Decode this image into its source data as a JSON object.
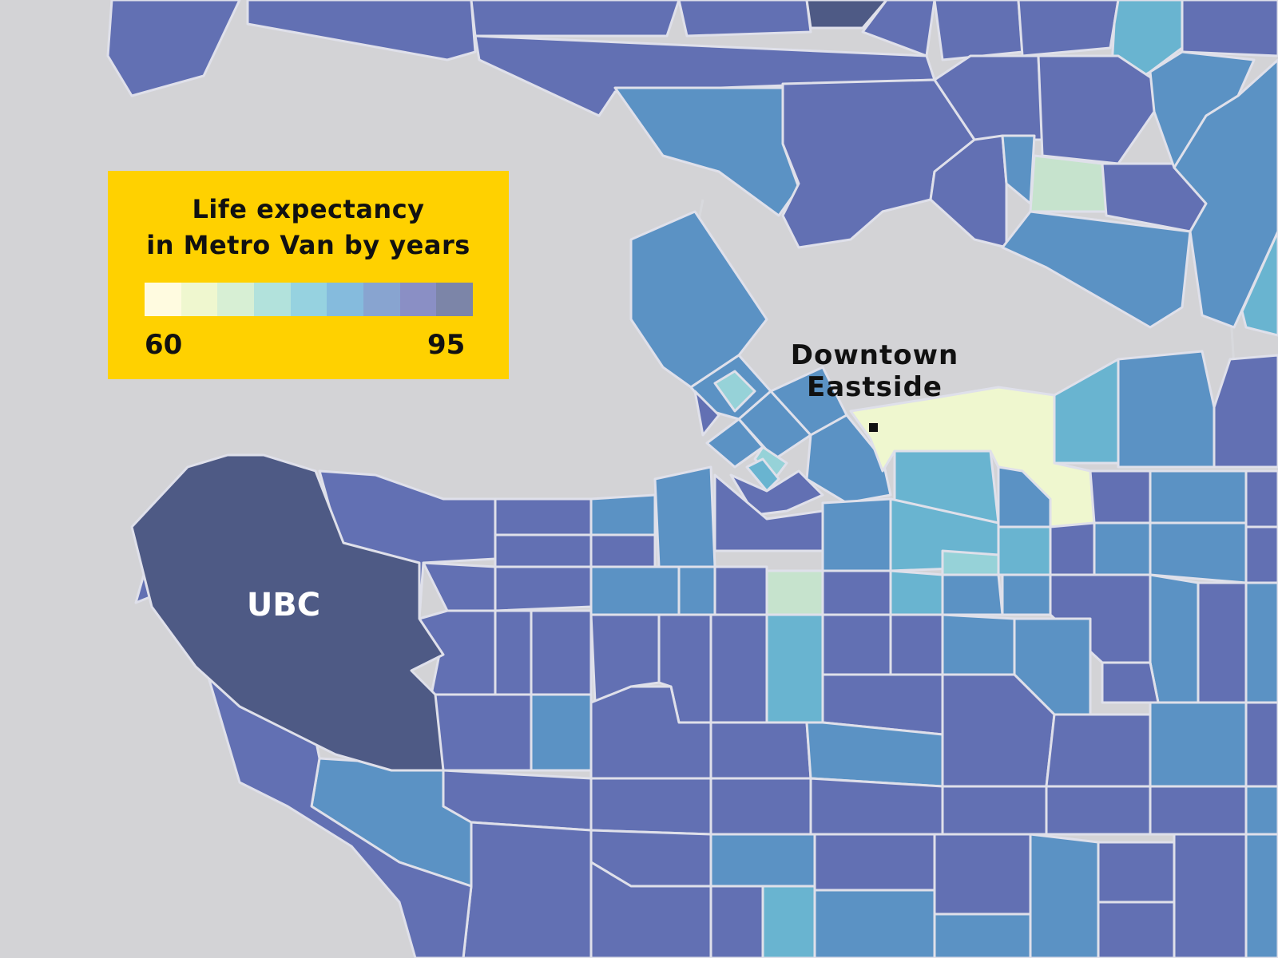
{
  "legend": {
    "title_line1": "Life expectancy",
    "title_line2": "in Metro Van by years",
    "min_label": "60",
    "max_label": "95",
    "ramp_colors": [
      "#fffbe0",
      "#eff7cf",
      "#d7efd4",
      "#b2e2dc",
      "#96d2e0",
      "#85bbdd",
      "#88a4d0",
      "#8a8fc5",
      "#7c85a8"
    ]
  },
  "labels": {
    "ubc": "UBC",
    "downtown_eastside_line1": "Downtown",
    "downtown_eastside_line2": "Eastside"
  },
  "colors": {
    "background": "#d3d3d6",
    "legend_bg": "#ffd100",
    "region_border": "#dfe0ea",
    "ubc": "#4e5a85"
  }
}
